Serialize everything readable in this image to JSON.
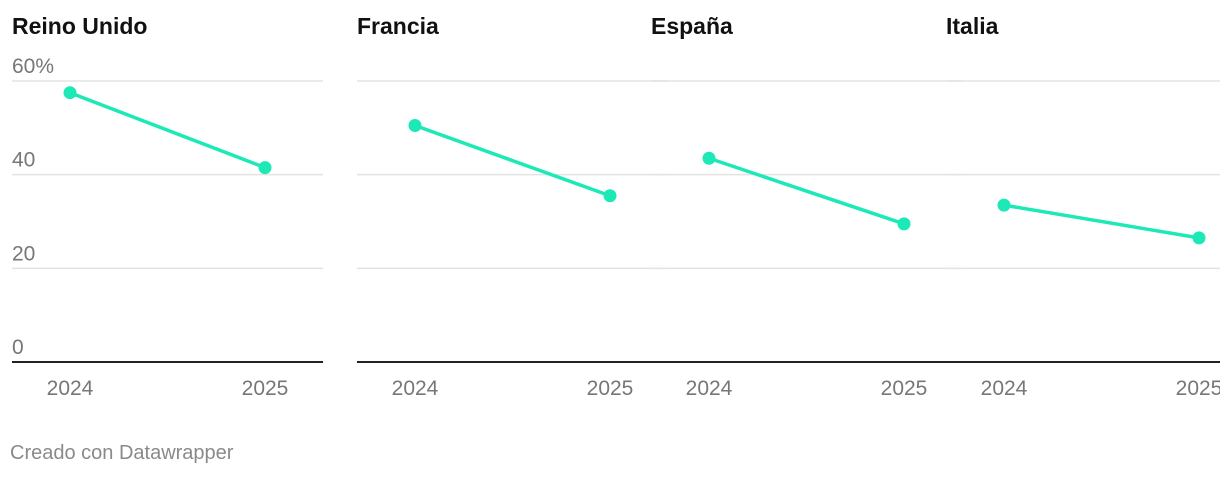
{
  "chart_data": {
    "type": "line",
    "layout": "small-multiples",
    "x": [
      "2024",
      "2025"
    ],
    "ylim": [
      0,
      60
    ],
    "yticks": [
      0,
      20,
      40,
      60
    ],
    "ytick_labels": [
      "0",
      "20",
      "40",
      "60%"
    ],
    "grid": true,
    "color": "#1de9b6",
    "panels": [
      {
        "title": "Reino Unido",
        "values": [
          57.5,
          41.5
        ]
      },
      {
        "title": "Francia",
        "values": [
          50.5,
          35.5
        ]
      },
      {
        "title": "España",
        "values": [
          43.5,
          29.5
        ]
      },
      {
        "title": "Italia",
        "values": [
          33.5,
          26.5
        ]
      }
    ]
  },
  "footer": {
    "credit": "Creado con Datawrapper"
  }
}
